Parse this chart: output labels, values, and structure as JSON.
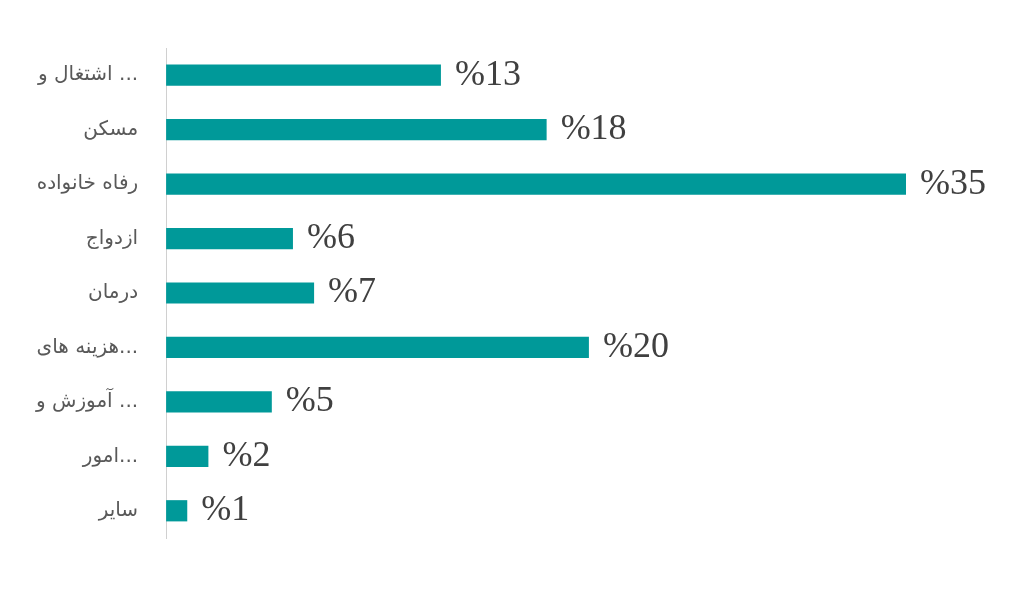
{
  "chart_data": {
    "type": "bar",
    "orientation": "horizontal",
    "categories": [
      "اشتغال و ...",
      "مسکن",
      "رفاه خانواده",
      "ازدواج",
      "درمان",
      "هزینه های...",
      "آموزش و ...",
      "امور...",
      "سایر"
    ],
    "values": [
      13,
      18,
      35,
      6,
      7,
      20,
      5,
      2,
      1
    ],
    "value_labels": [
      "%13",
      "%18",
      "%35",
      "%6",
      "%7",
      "%20",
      "%5",
      "%2",
      "%1"
    ],
    "color": "#009999",
    "legend": false
  }
}
